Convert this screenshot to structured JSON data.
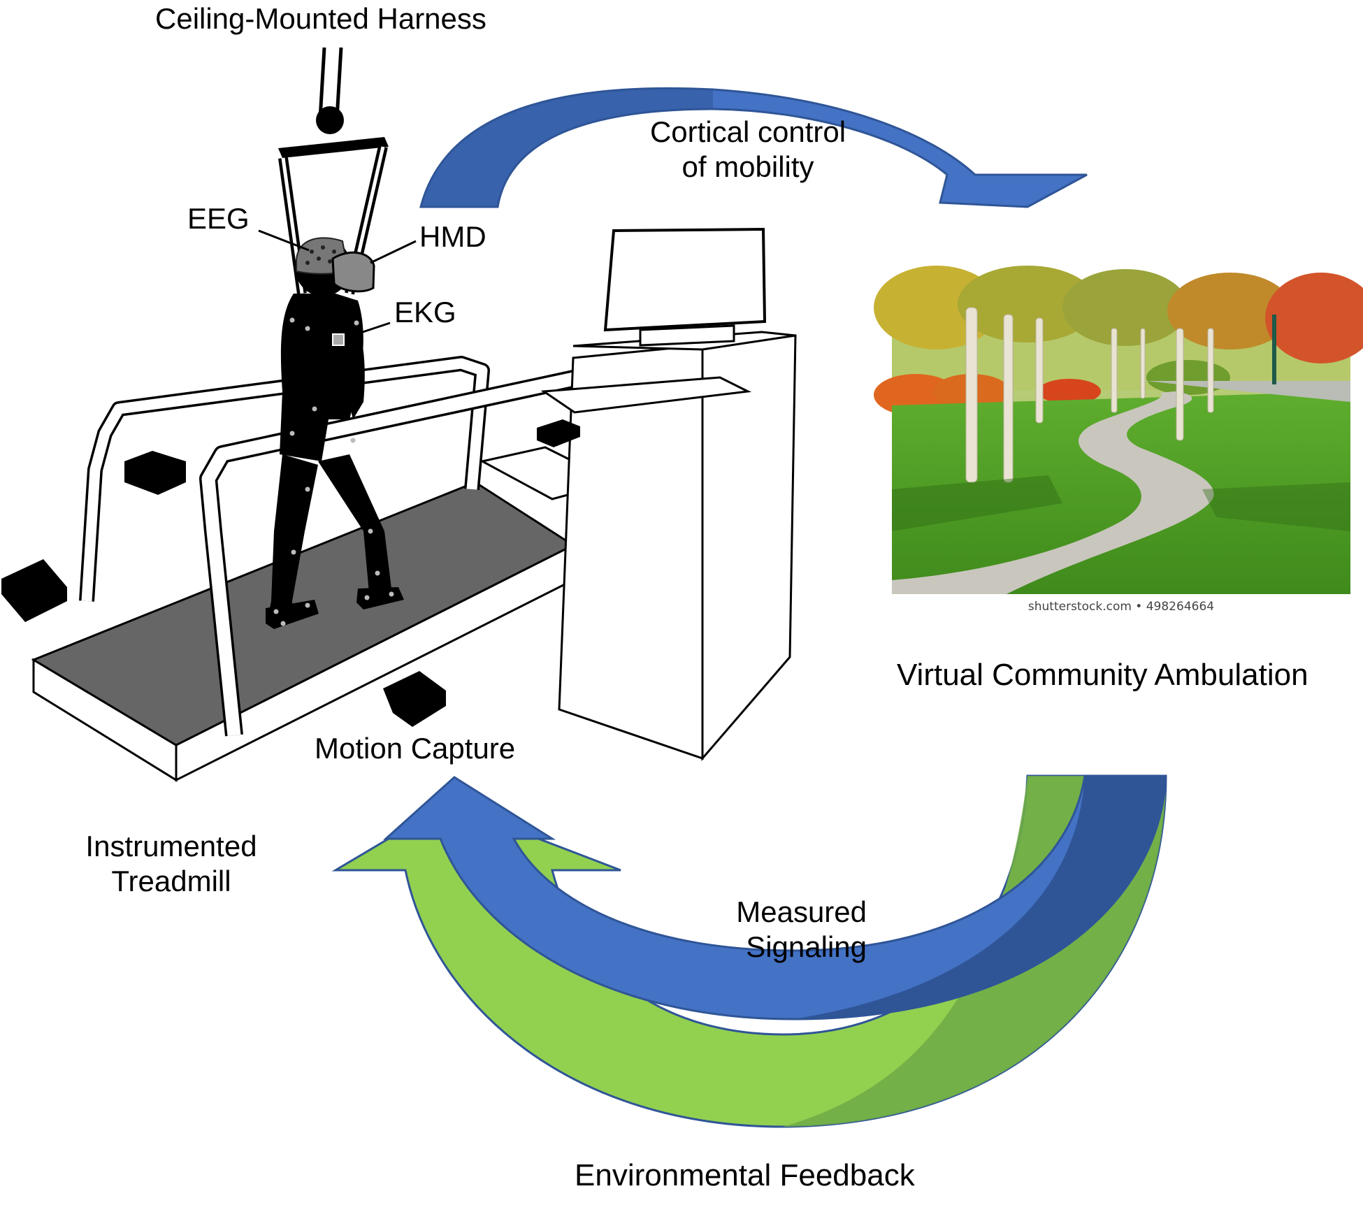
{
  "labels": {
    "harness": "Ceiling-Mounted Harness",
    "eeg": "EEG",
    "hmd": "HMD",
    "ekg": "EKG",
    "motion_capture": "Motion Capture",
    "treadmill_line1": "Instrumented",
    "treadmill_line2": "Treadmill",
    "cortical_line1": "Cortical control",
    "cortical_line2": "of mobility",
    "virtual": "Virtual Community Ambulation",
    "measured_line1": "Measured",
    "measured_line2": "Signaling",
    "environmental": "Environmental Feedback"
  },
  "photo": {
    "credit": "shutterstock.com • 498264664"
  },
  "colors": {
    "blue_light": "#4472c4",
    "blue_dark": "#2f5597",
    "green_light": "#92d050",
    "green_dark": "#70ad47",
    "outline": "#1f3864",
    "belt": "#666666",
    "figure": "#000000"
  }
}
